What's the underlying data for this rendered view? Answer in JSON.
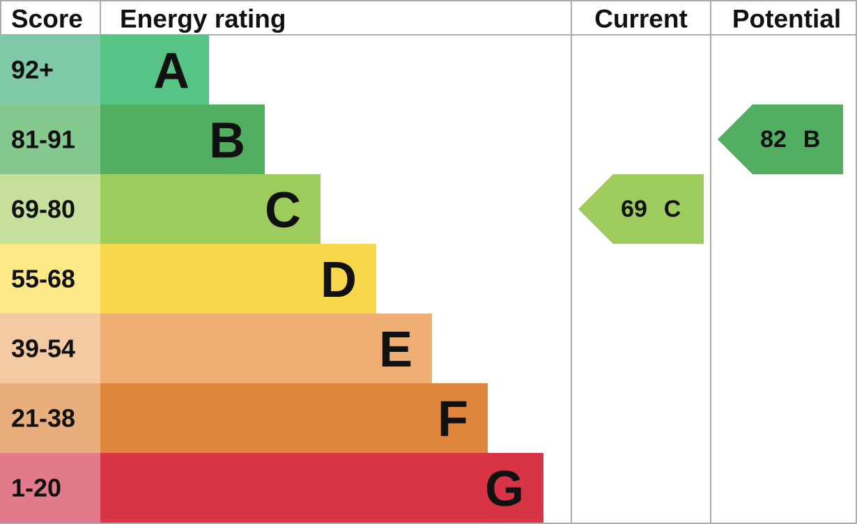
{
  "header": {
    "score": "Score",
    "rating": "Energy rating",
    "current": "Current",
    "potential": "Potential"
  },
  "bands": [
    {
      "score": "92+",
      "letter": "A",
      "color": "#55c485",
      "score_color": "#7fc8a8"
    },
    {
      "score": "81-91",
      "letter": "B",
      "color": "#52ae61",
      "score_color": "#86c98e"
    },
    {
      "score": "69-80",
      "letter": "C",
      "color": "#9dcb5c",
      "score_color": "#c5e09b"
    },
    {
      "score": "55-68",
      "letter": "D",
      "color": "#f7d84b",
      "score_color": "#fce885"
    },
    {
      "score": "39-54",
      "letter": "E",
      "color": "#efae72",
      "score_color": "#f4caa3"
    },
    {
      "score": "21-38",
      "letter": "F",
      "color": "#e0853c",
      "score_color": "#e8ae7b"
    },
    {
      "score": "1-20",
      "letter": "G",
      "color": "#d83445",
      "score_color": "#e27a8c"
    }
  ],
  "current": {
    "value": 69,
    "letter": "C"
  },
  "potential": {
    "value": 82,
    "letter": "B"
  }
}
